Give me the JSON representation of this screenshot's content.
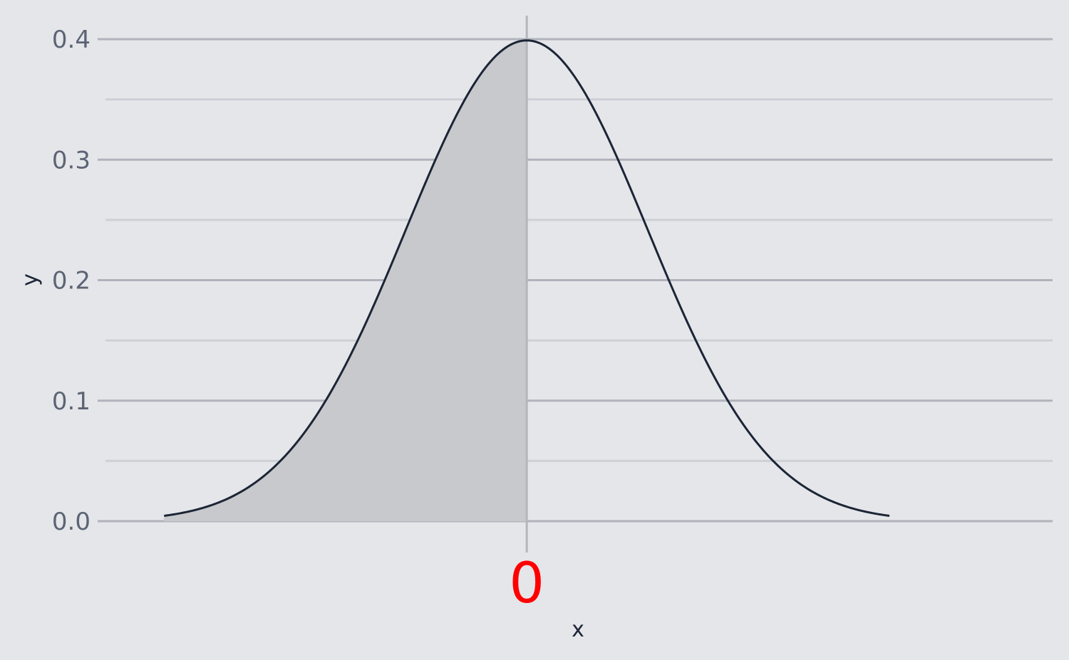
{
  "chart_data": {
    "type": "area",
    "title": "",
    "xlabel": "x",
    "ylabel": "y",
    "xlim": [
      -3.55,
      4.35
    ],
    "ylim": [
      0,
      0.4
    ],
    "y_ticks": [
      "0.0",
      "0.1",
      "0.2",
      "0.3",
      "0.4"
    ],
    "y_tick_values": [
      0,
      0.1,
      0.2,
      0.3,
      0.4
    ],
    "y_minor_tick_values": [
      0.05,
      0.15,
      0.25,
      0.35
    ],
    "x_ticks": [
      "0"
    ],
    "x_tick_values": [
      0
    ],
    "grid": "horizontal",
    "series": [
      {
        "kind": "line",
        "function": "standard normal density",
        "x": [
          -3.0,
          -2.5,
          -2.0,
          -1.5,
          -1.0,
          -0.5,
          0.0,
          0.5,
          1.0,
          1.5,
          2.0,
          2.5,
          3.0
        ],
        "y": [
          0.0044,
          0.0175,
          0.054,
          0.1295,
          0.242,
          0.3521,
          0.3989,
          0.3521,
          0.242,
          0.1295,
          0.054,
          0.0175,
          0.0044
        ]
      },
      {
        "kind": "shaded-area",
        "from": -3.0,
        "to": 0.0
      }
    ],
    "colors": {
      "background": "#e5e6ea",
      "curve": "#1c2536",
      "shade": "#c8c9cc",
      "major_grid": "#b0b3bb",
      "minor_grid": "#cdd0d5",
      "zero_line": "#b4b6bd",
      "x_tick_label": "#ff0000",
      "tick_label": "#5c6474",
      "axis_title": "#1c2536"
    }
  }
}
